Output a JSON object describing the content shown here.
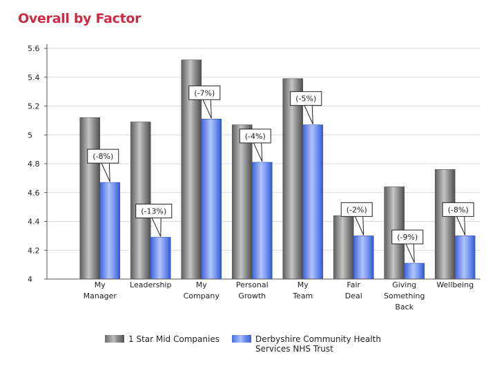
{
  "chart_data": {
    "type": "bar",
    "title": "Overall by Factor",
    "xlabel": "",
    "ylabel": "",
    "ylim": [
      4,
      5.6
    ],
    "yticks": [
      "4",
      "4.2",
      "4.4",
      "4.6",
      "4.8",
      "5",
      "5.2",
      "5.4",
      "5.6"
    ],
    "categories": [
      [
        "My",
        "Manager"
      ],
      [
        "Leadership"
      ],
      [
        "My",
        "Company"
      ],
      [
        "Personal",
        "Growth"
      ],
      [
        "My",
        "Team"
      ],
      [
        "Fair",
        "Deal"
      ],
      [
        "Giving",
        "Something",
        "Back"
      ],
      [
        "Wellbeing"
      ]
    ],
    "series": [
      {
        "name": "1 Star Mid Companies",
        "color": "#9a9a9a",
        "values": [
          5.12,
          5.09,
          5.52,
          5.07,
          5.39,
          4.44,
          4.64,
          4.76
        ]
      },
      {
        "name": "Derbyshire Community Health Services NHS Trust",
        "color": "#6f8ff0",
        "values": [
          4.67,
          4.29,
          5.11,
          4.81,
          5.07,
          4.3,
          4.11,
          4.3
        ]
      }
    ],
    "annotations": [
      "(-8%)",
      "(-13%)",
      "(-7%)",
      "(-4%)",
      "(-5%)",
      "(-2%)",
      "(-9%)",
      "(-8%)"
    ],
    "legend": "bottom",
    "grid": true
  },
  "legend": {
    "series1": "1 Star Mid Companies",
    "series2_line1": "Derbyshire Community Health",
    "series2_line2": "Services NHS Trust"
  }
}
